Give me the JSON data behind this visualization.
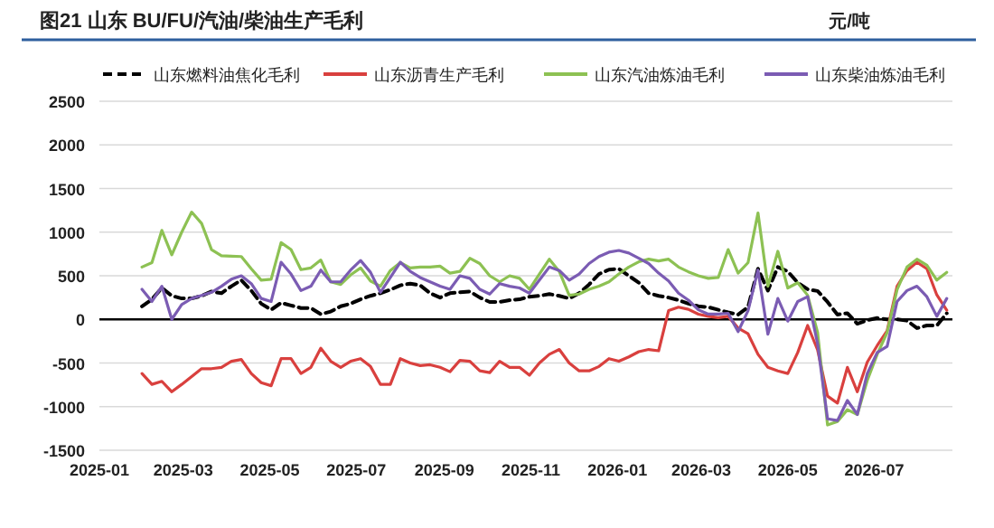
{
  "chart_data": {
    "type": "line",
    "title": "图21  山东 BU/FU/汽油/柴油生产毛利",
    "ylabel": "元/吨",
    "x": [
      "2025-01-31",
      "2025-02-07",
      "2025-02-14",
      "2025-02-21",
      "2025-02-28",
      "2025-03-07",
      "2025-03-14",
      "2025-03-21",
      "2025-03-28",
      "2025-04-04",
      "2025-04-11",
      "2025-04-18",
      "2025-04-25",
      "2025-05-02",
      "2025-05-09",
      "2025-05-16",
      "2025-05-23",
      "2025-05-30",
      "2025-06-06",
      "2025-06-13",
      "2025-06-20",
      "2025-06-27",
      "2025-07-04",
      "2025-07-11",
      "2025-07-18",
      "2025-07-25",
      "2025-08-01",
      "2025-08-08",
      "2025-08-15",
      "2025-08-22",
      "2025-08-29",
      "2025-09-05",
      "2025-09-12",
      "2025-09-19",
      "2025-09-26",
      "2025-10-03",
      "2025-10-10",
      "2025-10-17",
      "2025-10-24",
      "2025-10-31",
      "2025-11-07",
      "2025-11-14",
      "2025-11-21",
      "2025-11-28",
      "2025-12-05",
      "2025-12-12",
      "2025-12-19",
      "2025-12-26",
      "2026-01-02",
      "2026-01-09",
      "2026-01-16",
      "2026-01-23",
      "2026-01-30",
      "2026-02-06",
      "2026-02-13",
      "2026-02-20",
      "2026-02-27",
      "2026-03-06",
      "2026-03-13",
      "2026-03-20",
      "2026-03-27",
      "2026-04-03",
      "2026-04-10",
      "2026-04-17",
      "2026-04-24",
      "2026-05-01",
      "2026-05-08",
      "2026-05-15",
      "2026-05-22",
      "2026-05-29",
      "2026-06-05",
      "2026-06-12",
      "2026-06-19",
      "2026-06-26",
      "2026-07-03",
      "2026-07-10",
      "2026-07-17",
      "2026-07-24",
      "2026-07-31",
      "2026-08-07",
      "2026-08-14",
      "2026-08-21"
    ],
    "series": [
      {
        "name": "山东燃料油焦化毛利",
        "color": "#000000",
        "line_style": "dashed",
        "values": [
          150,
          230,
          360,
          270,
          240,
          240,
          270,
          320,
          300,
          380,
          450,
          330,
          180,
          110,
          190,
          160,
          130,
          130,
          60,
          90,
          150,
          180,
          230,
          270,
          300,
          340,
          390,
          410,
          390,
          300,
          250,
          300,
          310,
          320,
          250,
          200,
          200,
          220,
          230,
          260,
          270,
          290,
          270,
          240,
          300,
          400,
          520,
          570,
          580,
          500,
          420,
          300,
          270,
          250,
          220,
          180,
          150,
          140,
          110,
          80,
          55,
          140,
          580,
          330,
          600,
          550,
          420,
          345,
          325,
          200,
          55,
          70,
          -50,
          -10,
          15,
          0,
          0,
          -15,
          -100,
          -70,
          -70,
          70
        ]
      },
      {
        "name": "山东沥青生产毛利",
        "color": "#d9403e",
        "values": [
          -620,
          -745,
          -710,
          -830,
          -745,
          -655,
          -565,
          -565,
          -550,
          -480,
          -460,
          -620,
          -725,
          -760,
          -450,
          -450,
          -620,
          -550,
          -330,
          -480,
          -550,
          -480,
          -450,
          -540,
          -745,
          -745,
          -450,
          -500,
          -530,
          -520,
          -550,
          -600,
          -470,
          -480,
          -590,
          -610,
          -480,
          -550,
          -550,
          -640,
          -500,
          -400,
          -345,
          -500,
          -590,
          -590,
          -540,
          -450,
          -480,
          -430,
          -370,
          -345,
          -360,
          100,
          140,
          115,
          60,
          35,
          20,
          35,
          -100,
          -165,
          -400,
          -550,
          -590,
          -620,
          -380,
          -70,
          -350,
          -880,
          -960,
          -550,
          -830,
          -490,
          -300,
          -130,
          380,
          560,
          655,
          580,
          280,
          105
        ]
      },
      {
        "name": "山东汽油炼油毛利",
        "color": "#8dc153",
        "values": [
          600,
          650,
          1020,
          740,
          1000,
          1230,
          1100,
          800,
          730,
          725,
          720,
          580,
          450,
          460,
          880,
          800,
          570,
          590,
          680,
          430,
          400,
          510,
          590,
          440,
          380,
          560,
          650,
          590,
          600,
          600,
          610,
          530,
          550,
          700,
          640,
          500,
          430,
          500,
          470,
          345,
          520,
          690,
          550,
          276,
          290,
          345,
          380,
          430,
          520,
          600,
          660,
          690,
          670,
          690,
          600,
          545,
          500,
          470,
          480,
          800,
          530,
          650,
          1220,
          380,
          780,
          360,
          420,
          276,
          -150,
          -1210,
          -1170,
          -1035,
          -1090,
          -700,
          -400,
          -150,
          340,
          600,
          690,
          620,
          450,
          540
        ]
      },
      {
        "name": "山东柴油炼油毛利",
        "color": "#7b5cb3",
        "values": [
          345,
          205,
          380,
          0,
          170,
          240,
          275,
          310,
          380,
          460,
          500,
          410,
          240,
          205,
          655,
          520,
          330,
          380,
          565,
          430,
          430,
          565,
          675,
          540,
          310,
          480,
          655,
          550,
          480,
          430,
          380,
          345,
          500,
          470,
          345,
          290,
          410,
          380,
          360,
          300,
          450,
          600,
          560,
          450,
          520,
          640,
          720,
          770,
          790,
          760,
          700,
          640,
          530,
          440,
          300,
          220,
          110,
          60,
          60,
          70,
          -140,
          100,
          565,
          -170,
          240,
          -20,
          205,
          260,
          -280,
          -1140,
          -1160,
          -930,
          -1090,
          -620,
          -380,
          -310,
          205,
          330,
          380,
          260,
          35,
          240
        ]
      }
    ],
    "xlim": [
      "2025-01-01",
      "2026-08-25"
    ],
    "xticks": [
      {
        "value": "2025-01-01",
        "label": "2025-01"
      },
      {
        "value": "2025-03-01",
        "label": "2025-03"
      },
      {
        "value": "2025-05-01",
        "label": "2025-05"
      },
      {
        "value": "2025-07-01",
        "label": "2025-07"
      },
      {
        "value": "2025-09-01",
        "label": "2025-09"
      },
      {
        "value": "2025-11-01",
        "label": "2025-11"
      },
      {
        "value": "2026-01-01",
        "label": "2026-01"
      },
      {
        "value": "2026-03-01",
        "label": "2026-03"
      },
      {
        "value": "2026-05-01",
        "label": "2026-05"
      },
      {
        "value": "2026-07-01",
        "label": "2026-07"
      }
    ],
    "ylim": [
      -1500,
      2500
    ],
    "yticks": [
      -1500,
      -1000,
      -500,
      0,
      500,
      1000,
      1500,
      2000,
      2500
    ],
    "grid": "y",
    "legend": "top",
    "marker": "none"
  }
}
